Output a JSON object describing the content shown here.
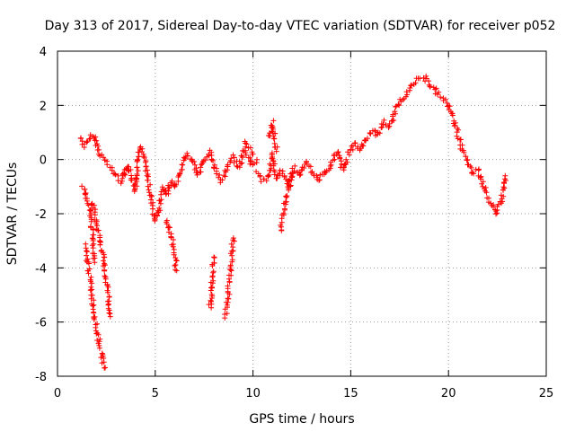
{
  "chart_data": {
    "type": "scatter",
    "title": "Day 313 of 2017, Sidereal Day-to-day VTEC variation (SDTVAR) for receiver p052",
    "xlabel": "GPS time / hours",
    "ylabel": "SDTVAR / TECUs",
    "xlim": [
      0,
      25
    ],
    "ylim": [
      -8,
      4
    ],
    "xticks": [
      0,
      5,
      10,
      15,
      20,
      25
    ],
    "yticks": [
      -8,
      -6,
      -4,
      -2,
      0,
      2,
      4
    ],
    "grid": true,
    "marker": "+",
    "series_color": "#ff0000",
    "series": [
      {
        "name": "p052",
        "segments": [
          {
            "x": [
              1.2,
              1.4,
              1.6,
              1.8,
              2.0,
              2.2,
              2.4,
              2.6,
              2.8,
              3.0,
              3.2,
              3.4
            ],
            "y": [
              0.8,
              0.5,
              0.7,
              0.9,
              0.6,
              0.2,
              0.0,
              -0.2,
              -0.4,
              -0.6,
              -0.8,
              -0.5
            ]
          },
          {
            "x": [
              3.4,
              3.6,
              3.8,
              4.0,
              4.2,
              4.4,
              4.6,
              4.8,
              5.0,
              5.2,
              5.4,
              5.6,
              5.8,
              6.0
            ],
            "y": [
              -0.6,
              -0.2,
              -0.7,
              -1.2,
              0.5,
              0.2,
              -0.6,
              -1.5,
              -2.3,
              -1.8,
              -1.0,
              -1.3,
              -0.8,
              -1.0
            ]
          },
          {
            "x": [
              6.0,
              6.3,
              6.6,
              6.9,
              7.2,
              7.5,
              7.8,
              8.1,
              8.4,
              8.7,
              9.0,
              9.3,
              9.6,
              9.9,
              10.2
            ],
            "y": [
              -1.0,
              -0.5,
              0.2,
              0.0,
              -0.6,
              -0.1,
              0.3,
              -0.4,
              -0.8,
              -0.2,
              0.1,
              -0.3,
              0.4,
              -0.2,
              0.0
            ]
          },
          {
            "x": [
              10.2,
              10.5,
              10.8,
              11.0,
              11.2,
              11.5,
              11.8,
              12.1,
              12.4,
              12.7,
              13.0,
              13.3,
              13.6,
              14.0
            ],
            "y": [
              -0.5,
              -0.8,
              -0.6,
              0.2,
              -0.7,
              -0.4,
              -0.9,
              -0.3,
              -0.6,
              -0.1,
              -0.4,
              -0.8,
              -0.5,
              -0.2
            ]
          },
          {
            "x": [
              14.0,
              14.3,
              14.6,
              14.9,
              15.2,
              15.5,
              15.8,
              16.1,
              16.4,
              16.7,
              17.0,
              17.3,
              17.6,
              17.9,
              18.2,
              18.5,
              18.8
            ],
            "y": [
              -0.2,
              0.3,
              -0.4,
              0.2,
              0.6,
              0.3,
              0.8,
              1.1,
              0.9,
              1.4,
              1.2,
              1.9,
              2.2,
              2.5,
              2.8,
              3.0,
              2.9
            ]
          },
          {
            "x": [
              18.8,
              19.1,
              19.4,
              19.7,
              20.0,
              20.3,
              20.6,
              20.9,
              21.2,
              21.5,
              21.8,
              22.1,
              22.4,
              22.7,
              22.9
            ],
            "y": [
              3.0,
              2.7,
              2.5,
              2.3,
              2.0,
              1.4,
              0.6,
              0.0,
              -0.5,
              -0.4,
              -1.0,
              -1.5,
              -2.0,
              -1.6,
              -0.6
            ]
          },
          {
            "x": [
              1.4,
              1.6,
              1.8,
              2.0,
              2.2,
              2.4
            ],
            "y": [
              -3.2,
              -4.0,
              -5.2,
              -6.3,
              -7.0,
              -7.7
            ]
          },
          {
            "x": [
              1.8,
              2.0,
              2.2,
              2.4,
              2.6,
              2.7
            ],
            "y": [
              -1.6,
              -2.4,
              -3.0,
              -4.0,
              -5.0,
              -5.8
            ]
          },
          {
            "x": [
              1.3,
              1.5,
              1.7,
              1.9
            ],
            "y": [
              -1.0,
              -1.5,
              -2.0,
              -3.8
            ]
          },
          {
            "x": [
              5.6,
              5.8,
              6.0,
              6.1
            ],
            "y": [
              -2.2,
              -2.8,
              -3.6,
              -4.1
            ]
          },
          {
            "x": [
              7.8,
              7.9,
              8.0
            ],
            "y": [
              -5.5,
              -4.5,
              -3.6
            ]
          },
          {
            "x": [
              8.6,
              8.8,
              9.0
            ],
            "y": [
              -5.8,
              -4.5,
              -2.9
            ]
          },
          {
            "x": [
              10.8,
              11.0,
              11.2
            ],
            "y": [
              0.8,
              1.4,
              0.3
            ]
          },
          {
            "x": [
              11.4,
              11.6,
              11.8,
              12.0
            ],
            "y": [
              -2.6,
              -1.8,
              -1.2,
              -0.5
            ]
          },
          {
            "x": [
              9.6,
              10.0
            ],
            "y": [
              0.7,
              0.2
            ]
          }
        ]
      }
    ]
  }
}
